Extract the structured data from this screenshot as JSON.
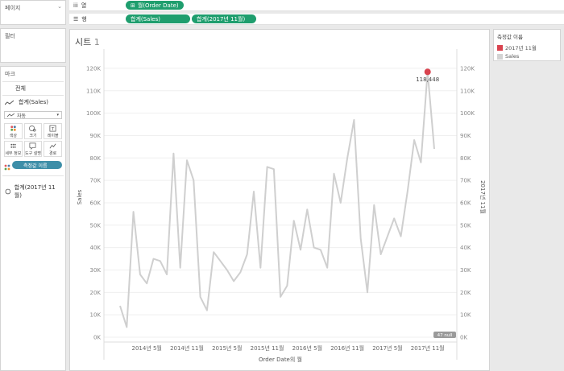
{
  "sidebar": {
    "pages_title": "페이지",
    "filters_title": "필터",
    "marks_title": "마크",
    "all_label": "전체",
    "sales_layer_label": "합계(Sales)",
    "mark_type": "자동",
    "encodings": [
      "색상",
      "크기",
      "레이블",
      "세부 정보",
      "도구 설명",
      "경로"
    ],
    "measure_pill": "측정값 이름",
    "nov_layer_label": "합계(2017년 11월)"
  },
  "shelves": {
    "columns_label": "열",
    "rows_label": "행",
    "columns_pill": "월(Order Date)",
    "rows_pill_1": "합계(Sales)",
    "rows_pill_2": "합계(2017년 11월)"
  },
  "sheet": {
    "title": "시트 ",
    "number": "1"
  },
  "legend": {
    "title": "측정값 이름",
    "items": [
      {
        "label": "2017년 11월",
        "color": "#d9434f"
      },
      {
        "label": "Sales",
        "color": "#d3d3d3"
      }
    ]
  },
  "null_badge": "47 null",
  "peak_label": "118,448",
  "chart_data": {
    "type": "line",
    "xlabel": "Order Date의 월",
    "ylabel_left": "Sales",
    "ylabel_right": "2017년 11월",
    "ylim": [
      0,
      125000
    ],
    "y_ticks": [
      "0K",
      "10K",
      "20K",
      "30K",
      "40K",
      "50K",
      "60K",
      "70K",
      "80K",
      "90K",
      "100K",
      "110K",
      "120K"
    ],
    "x_ticks": [
      "2014년 5월",
      "2014년 11월",
      "2015년 5월",
      "2015년 11월",
      "2016년 5월",
      "2016년 11월",
      "2017년 5월",
      "2017년 11월"
    ],
    "x_tick_month_index": [
      4,
      10,
      16,
      22,
      28,
      34,
      40,
      46
    ],
    "series": [
      {
        "name": "Sales",
        "color": "#cfcfcf",
        "values": [
          14000,
          4500,
          56000,
          28000,
          24000,
          35000,
          34000,
          28000,
          82000,
          31000,
          79000,
          70000,
          18000,
          12000,
          38000,
          34000,
          30000,
          25000,
          29000,
          37000,
          65000,
          31000,
          76000,
          75000,
          18000,
          23000,
          52000,
          39000,
          57000,
          40000,
          39000,
          31000,
          73000,
          60000,
          80000,
          97000,
          44000,
          20000,
          59000,
          37000,
          45000,
          53000,
          45000,
          65000,
          88000,
          78000,
          118448,
          84000
        ]
      },
      {
        "name": "2017년 11월",
        "color": "#d9434f",
        "point_index": 46,
        "value": 118448
      }
    ]
  }
}
